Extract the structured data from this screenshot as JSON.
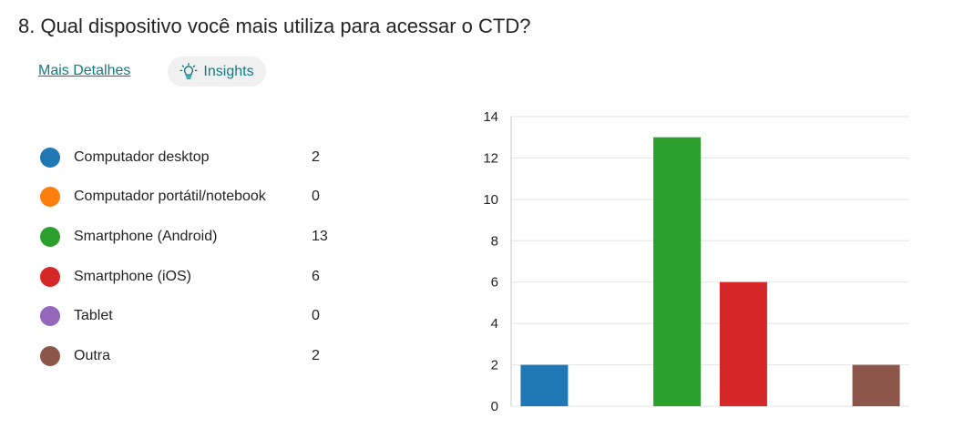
{
  "question": {
    "title": "8.  Qual dispositivo você mais utiliza para acessar o CTD?"
  },
  "links": {
    "details_label": "Mais Detalhes"
  },
  "insights": {
    "label": "Insights",
    "icon": "lightbulb-icon"
  },
  "legend": {
    "items": [
      {
        "label": "Computador desktop",
        "count": "2",
        "color": "#1f77b4"
      },
      {
        "label": "Computador portátil/notebook",
        "count": "0",
        "color": "#ff7f0e"
      },
      {
        "label": "Smartphone (Android)",
        "count": "13",
        "color": "#2ca02c"
      },
      {
        "label": "Smartphone (iOS)",
        "count": "6",
        "color": "#d62728"
      },
      {
        "label": "Tablet",
        "count": "0",
        "color": "#9467bd"
      },
      {
        "label": "Outra",
        "count": "2",
        "color": "#8c564b"
      }
    ]
  },
  "chart_data": {
    "type": "bar",
    "categories": [
      "Computador desktop",
      "Computador portátil/notebook",
      "Smartphone (Android)",
      "Smartphone (iOS)",
      "Tablet",
      "Outra"
    ],
    "values": [
      2,
      0,
      13,
      6,
      0,
      2
    ],
    "colors": [
      "#1f77b4",
      "#ff7f0e",
      "#2ca02c",
      "#d62728",
      "#9467bd",
      "#8c564b"
    ],
    "title": "",
    "xlabel": "",
    "ylabel": "",
    "ylim": [
      0,
      14
    ],
    "yticks": [
      "0",
      "2",
      "4",
      "6",
      "8",
      "10",
      "12",
      "14"
    ],
    "grid": true,
    "legend": "left"
  }
}
